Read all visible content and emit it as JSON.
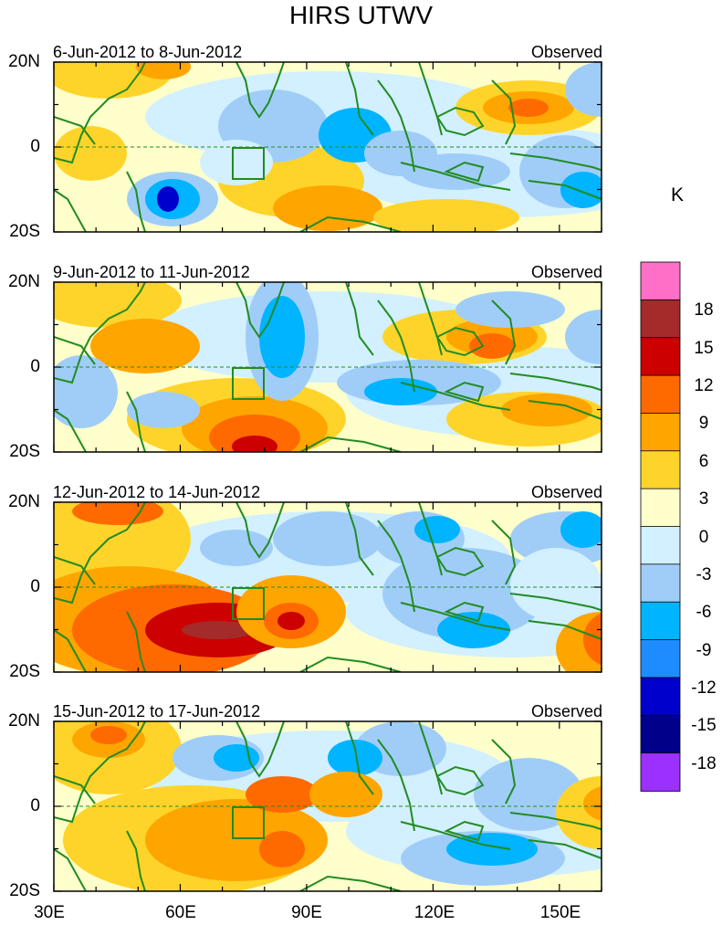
{
  "title": "HIRS UTWV",
  "panels": [
    {
      "date_range": "6-Jun-2012 to 8-Jun-2012",
      "tag": "Observed"
    },
    {
      "date_range": "9-Jun-2012 to 11-Jun-2012",
      "tag": "Observed"
    },
    {
      "date_range": "12-Jun-2012 to 14-Jun-2012",
      "tag": "Observed"
    },
    {
      "date_range": "15-Jun-2012 to 17-Jun-2012",
      "tag": "Observed"
    }
  ],
  "lat_labels": [
    "20N",
    "0",
    "20S"
  ],
  "lon_labels": [
    "30E",
    "60E",
    "90E",
    "120E",
    "150E"
  ],
  "colorbar": {
    "unit": "K",
    "labels": [
      "18",
      "15",
      "12",
      "9",
      "6",
      "3",
      "0",
      "-3",
      "-6",
      "-9",
      "-12",
      "-15",
      "-18"
    ],
    "colors": [
      "#ff6ec7",
      "#a52a2a",
      "#cd0000",
      "#ff6a00",
      "#ffa500",
      "#ffd42a",
      "#ffffcc",
      "#d2f0ff",
      "#a0cdf8",
      "#00b4ff",
      "#1e8cff",
      "#0000cd",
      "#00008b",
      "#9b30ff"
    ]
  },
  "colors": {
    "coast": "#228b22",
    "box": "#228b22"
  }
}
